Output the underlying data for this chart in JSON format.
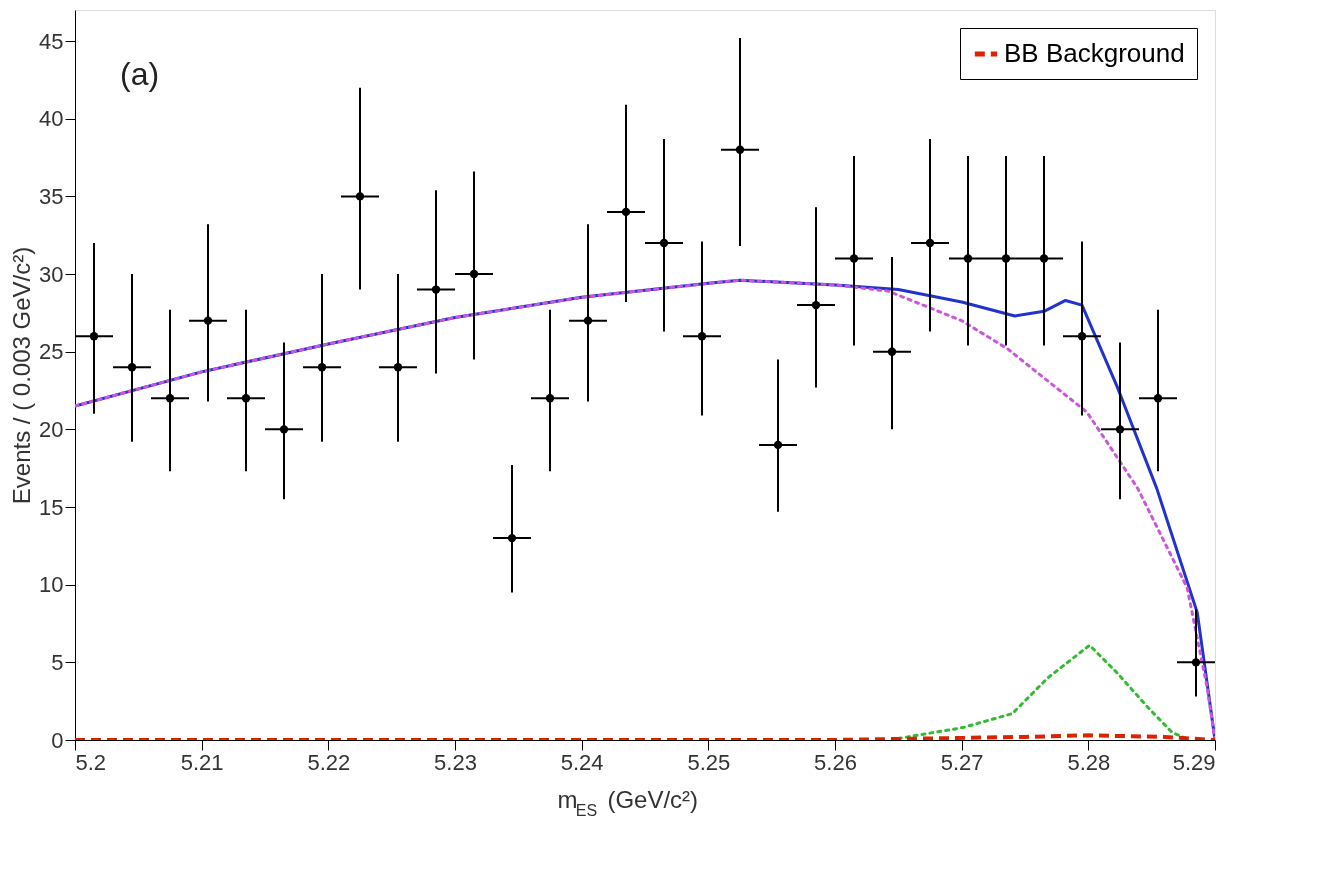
{
  "chart_data": {
    "type": "scatter",
    "annotations": [
      "(a)"
    ],
    "xlabel": "m$_{ES}$ (GeV/c²)",
    "ylabel": "Events / ( 0.003 GeV/c²)",
    "xlim": [
      5.2,
      5.29
    ],
    "xticks": [
      5.2,
      5.21,
      5.22,
      5.23,
      5.24,
      5.25,
      5.26,
      5.27,
      5.28,
      5.29
    ],
    "ylim": [
      0,
      47
    ],
    "yticks": [
      0,
      5,
      10,
      15,
      20,
      25,
      30,
      35,
      40,
      45
    ],
    "grid": false,
    "legend": "top right",
    "series": [
      {
        "type": "line",
        "color": "#2233cc",
        "line_style": "solid",
        "x": [
          5.2,
          5.21,
          5.22,
          5.23,
          5.24,
          5.25,
          5.2525,
          5.26,
          5.265,
          5.27,
          5.2742,
          5.2765,
          5.2782,
          5.2795,
          5.2823,
          5.2854,
          5.2886,
          5.29
        ],
        "values": [
          21.5,
          23.7,
          25.5,
          27.2,
          28.5,
          29.4,
          29.6,
          29.3,
          29.0,
          28.2,
          27.3,
          27.6,
          28.3,
          28.0,
          22.7,
          16.2,
          8.2,
          0
        ]
      },
      {
        "type": "line",
        "color": "#cc55dd",
        "line_style": "dotted",
        "x": [
          5.2,
          5.21,
          5.22,
          5.23,
          5.24,
          5.25,
          5.2525,
          5.26,
          5.2642,
          5.27,
          5.2736,
          5.2799,
          5.2839,
          5.2878,
          5.2894,
          5.29
        ],
        "values": [
          21.5,
          23.7,
          25.5,
          27.2,
          28.5,
          29.4,
          29.6,
          29.3,
          28.9,
          27.0,
          25.2,
          21.1,
          16.2,
          9.8,
          3.3,
          0
        ]
      },
      {
        "type": "line",
        "color": "#33bb33",
        "line_style": "dotted",
        "x": [
          5.265,
          5.2701,
          5.274,
          5.2768,
          5.2801,
          5.2823,
          5.2847,
          5.2866,
          5.288
        ],
        "values": [
          0.1,
          0.8,
          1.7,
          4.0,
          6.1,
          4.3,
          2.1,
          0.5,
          0
        ]
      },
      {
        "type": "line",
        "name": "BB Background",
        "color": "#dd2200",
        "line_style": "dashed",
        "x": [
          5.2,
          5.26,
          5.275,
          5.28,
          5.286,
          5.29
        ],
        "values": [
          0,
          0,
          0.2,
          0.3,
          0.2,
          0
        ]
      },
      {
        "color": "#000000",
        "marker": "circle",
        "x": [
          5.2015,
          5.2045,
          5.2075,
          5.2105,
          5.2135,
          5.2165,
          5.2195,
          5.2225,
          5.2255,
          5.2285,
          5.2315,
          5.2345,
          5.2375,
          5.2405,
          5.2435,
          5.2465,
          5.2495,
          5.2525,
          5.2555,
          5.2585,
          5.2615,
          5.2645,
          5.2675,
          5.2705,
          5.2735,
          5.2765,
          5.2795,
          5.2825,
          5.2855,
          5.2885
        ],
        "values": [
          26,
          24,
          22,
          27,
          22,
          20,
          24,
          35,
          24,
          29,
          30,
          13,
          22,
          27,
          34,
          32,
          26,
          38,
          19,
          28,
          31,
          25,
          32,
          31,
          31,
          31,
          26,
          20,
          22,
          5
        ],
        "errors": [
          [
            21,
            32
          ],
          [
            19.2,
            30
          ],
          [
            17.3,
            27.7
          ],
          [
            21.8,
            33.2
          ],
          [
            17.3,
            27.7
          ],
          [
            15.5,
            25.6
          ],
          [
            19.2,
            30
          ],
          [
            29,
            42
          ],
          [
            19.2,
            30
          ],
          [
            23.6,
            35.4
          ],
          [
            24.5,
            36.6
          ],
          [
            9.5,
            17.7
          ],
          [
            17.3,
            27.7
          ],
          [
            21.8,
            33.2
          ],
          [
            28.2,
            40.9
          ],
          [
            26.3,
            38.7
          ],
          [
            20.9,
            32.1
          ],
          [
            31.8,
            45.2
          ],
          [
            14.7,
            24.5
          ],
          [
            22.7,
            34.3
          ],
          [
            25.4,
            37.6
          ],
          [
            20,
            31.1
          ],
          [
            26.3,
            38.7
          ],
          [
            25.4,
            37.6
          ],
          [
            25.4,
            37.6
          ],
          [
            25.4,
            37.6
          ],
          [
            20.9,
            32.1
          ],
          [
            15.5,
            25.6
          ],
          [
            17.3,
            27.7
          ],
          [
            2.8,
            8.4
          ]
        ],
        "xerrors": [
          0.0015,
          0.0015,
          0.0015,
          0.0015,
          0.0015,
          0.0015,
          0.0015,
          0.0015,
          0.0015,
          0.0015,
          0.0015,
          0.0015,
          0.0015,
          0.0015,
          0.0015,
          0.0015,
          0.0015,
          0.0015,
          0.0015,
          0.0015,
          0.0015,
          0.0015,
          0.0015,
          0.0015,
          0.0015,
          0.0015,
          0.0015,
          0.0015,
          0.0015,
          0.0015
        ]
      }
    ]
  }
}
